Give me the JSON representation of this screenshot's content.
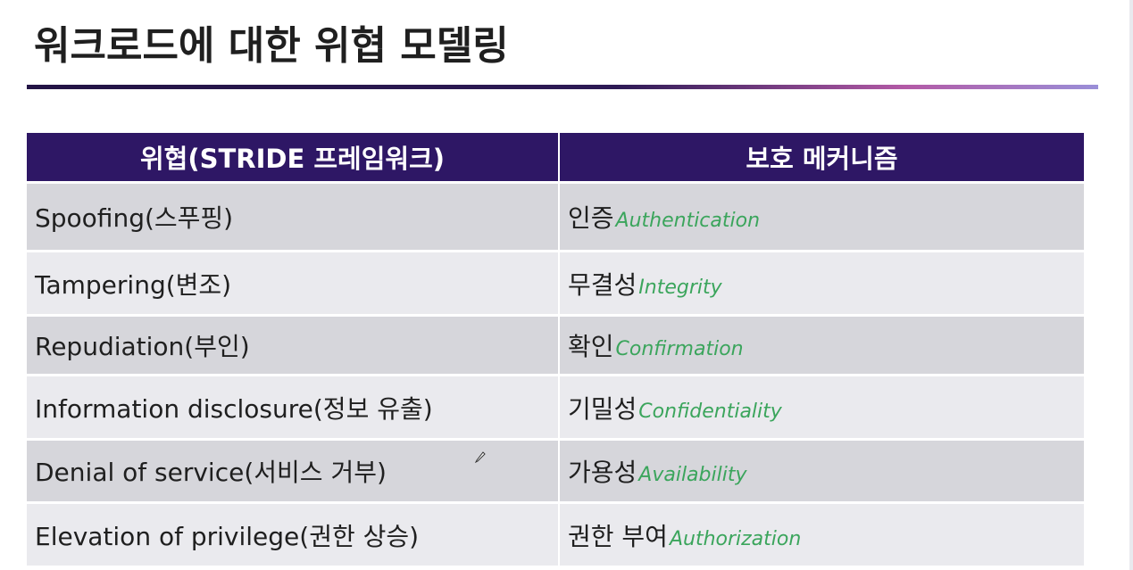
{
  "slide": {
    "title": "워크로드에 대한 위협 모델링"
  },
  "table": {
    "headers": {
      "threat": "위협(STRIDE 프레임워크)",
      "mechanism": "보호 메커니즘"
    },
    "rows": [
      {
        "threat": "Spoofing(스푸핑)",
        "mechanism_ko": "인증",
        "mechanism_en": "Authentication"
      },
      {
        "threat": "Tampering(변조)",
        "mechanism_ko": "무결성",
        "mechanism_en": "Integrity"
      },
      {
        "threat": "Repudiation(부인)",
        "mechanism_ko": "확인",
        "mechanism_en": "Confirmation"
      },
      {
        "threat": "Information disclosure(정보 유출)",
        "mechanism_ko": "기밀성",
        "mechanism_en": "Confidentiality"
      },
      {
        "threat": "Denial of service(서비스 거부)",
        "mechanism_ko": "가용성",
        "mechanism_en": "Availability"
      },
      {
        "threat": "Elevation of privilege(권한 상승)",
        "mechanism_ko": "권한 부여",
        "mechanism_en": "Authorization"
      }
    ]
  },
  "colors": {
    "header_bg": "#2e1765",
    "accent_green": "#3ba55c",
    "row_dark": "#d6d6db",
    "row_light": "#eaeaee"
  },
  "icons": {
    "cursor": "pencil-cursor-icon"
  }
}
